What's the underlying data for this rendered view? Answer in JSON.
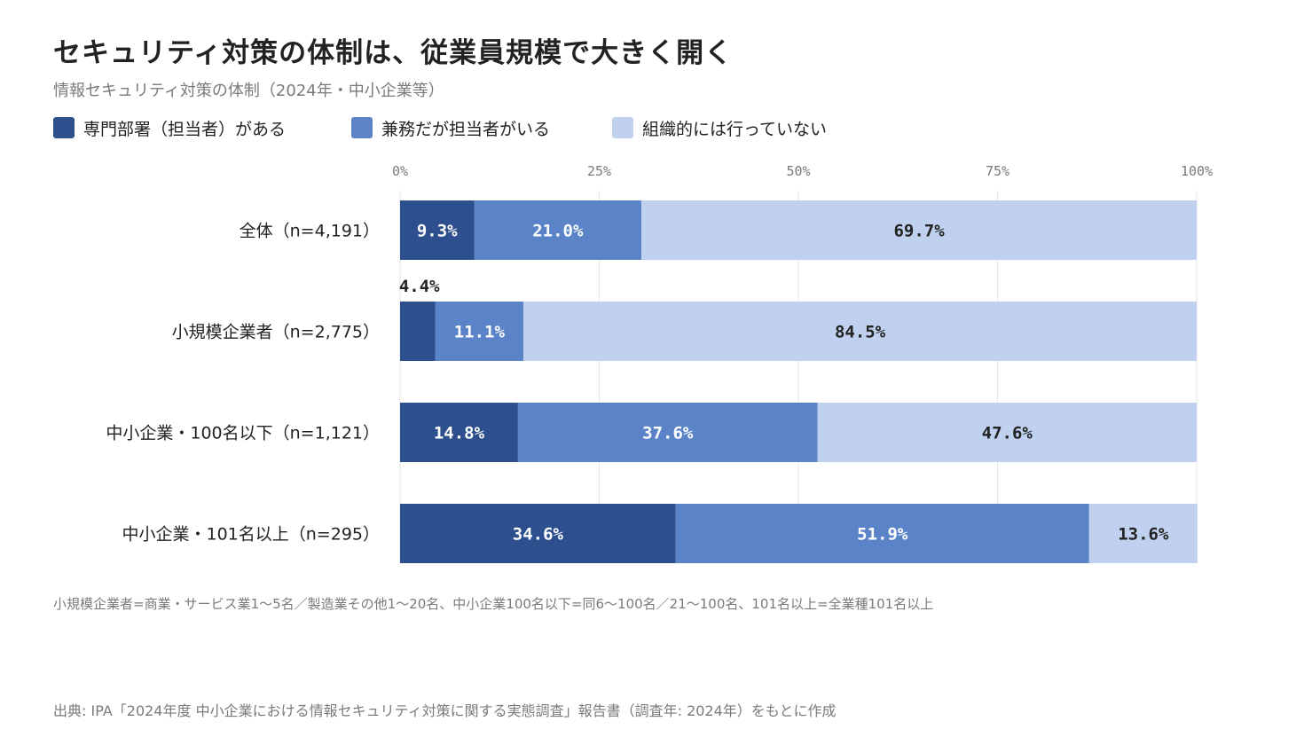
{
  "title": "セキュリティ対策の体制は、従業員規模で大きく開く",
  "subtitle": "情報セキュリティ対策の体制（2024年・中小企業等）",
  "note": "小規模企業者=商業・サービス業1～5名／製造業その他1～20名、中小企業100名以下=同6～100名／21～100名、101名以上=全業種101名以上",
  "source": "出典: IPA「2024年度 中小企業における情報セキュリティ対策に関する実態調査」報告書（調査年: 2024年）をもとに作成",
  "chart_data": {
    "type": "bar",
    "orientation": "horizontal",
    "stacked": true,
    "xlim": [
      0,
      100
    ],
    "x_ticks": [
      "0%",
      "25%",
      "50%",
      "75%",
      "100%"
    ],
    "categories": [
      "全体（n=4,191）",
      "小規模企業者（n=2,775）",
      "中小企業・100名以下（n=1,121）",
      "中小企業・101名以上（n=295）"
    ],
    "series": [
      {
        "name": "専門部署（担当者）がある",
        "color": "#2d4f8e",
        "values": [
          9.3,
          4.4,
          14.8,
          34.6
        ],
        "labels": [
          "9.3%",
          "4.4%",
          "14.8%",
          "34.6%"
        ]
      },
      {
        "name": "兼務だが担当者がいる",
        "color": "#5b84c8",
        "values": [
          21.0,
          11.1,
          37.6,
          51.9
        ],
        "labels": [
          "21.0%",
          "11.1%",
          "37.6%",
          "51.9%"
        ]
      },
      {
        "name": "組織的には行っていない",
        "color": "#bfd1ee",
        "values": [
          69.7,
          84.5,
          47.6,
          13.6
        ],
        "labels": [
          "69.7%",
          "84.5%",
          "47.6%",
          "13.6%"
        ]
      }
    ],
    "legend_position": "top-left",
    "grid": true
  }
}
